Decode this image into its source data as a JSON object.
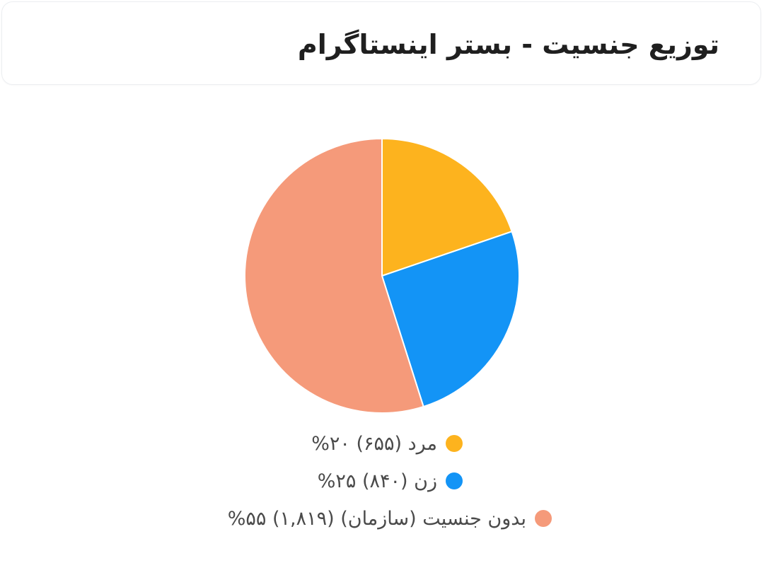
{
  "header": {
    "title": "توزیع جنسیت - بستر اینستاگرام"
  },
  "chart_data": {
    "type": "pie",
    "categories": [
      "مرد",
      "زن",
      "بدون جنسیت (سازمان)"
    ],
    "values": [
      655,
      840,
      1819
    ],
    "percents": [
      20,
      25,
      55
    ],
    "colors": [
      "#FDB31E",
      "#1394F6",
      "#F59A7A"
    ],
    "legend": {
      "placement": "bottom",
      "items": [
        {
          "text": "مرد (۶۵۵) ۲۰%",
          "color": "#FDB31E"
        },
        {
          "text": "زن (۸۴۰) ۲۵%",
          "color": "#1394F6"
        },
        {
          "text": "بدون جنسیت (سازمان) (۱,۸۱۹) ۵۵%",
          "color": "#F59A7A"
        }
      ]
    }
  }
}
